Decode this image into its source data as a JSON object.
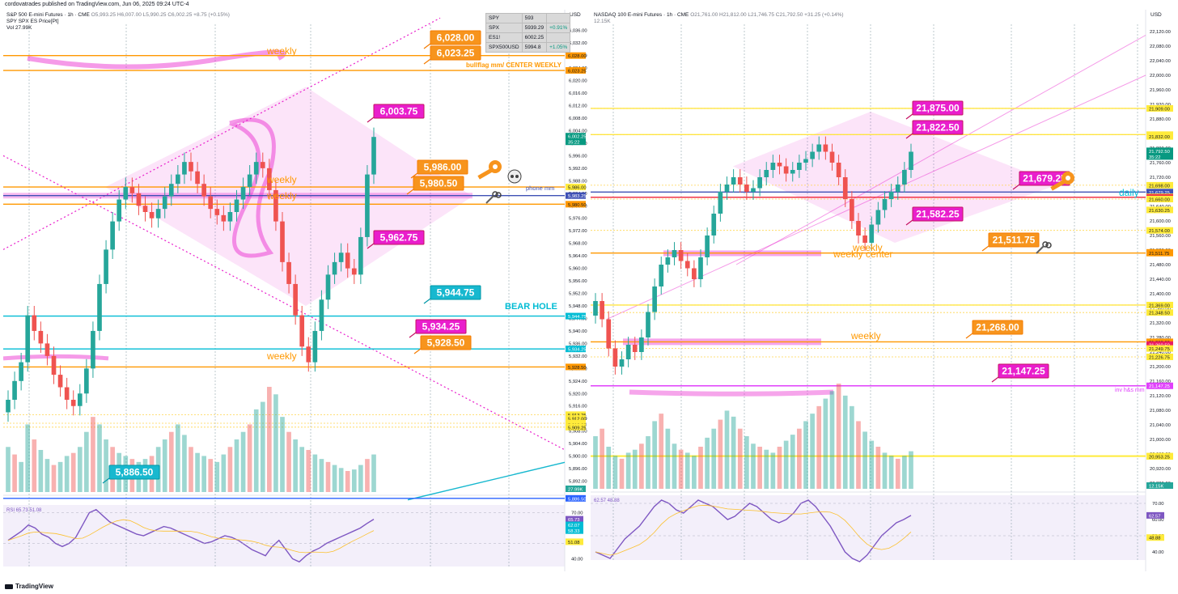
{
  "top_caption": "cordovatrades published on TradingView.com, Jun 06, 2025 09:24 UTC-4",
  "footer": "TradingView",
  "ticker_table": [
    {
      "sym": "SPY",
      "val": "593",
      "chg": ""
    },
    {
      "sym": "SPX",
      "val": "5939.29",
      "chg": "+0.91%"
    },
    {
      "sym": "ES1!",
      "val": "6002.25",
      "chg": ""
    },
    {
      "sym": "SPX500USD",
      "val": "5994.8",
      "chg": "+1.05%"
    }
  ],
  "charts": [
    {
      "id": "es",
      "title": "S&P 500 E-mini Futures · 1h · CME",
      "ohlc": "O5,993.25 H6,007.00 L5,990.25 C6,002.25 +8.75 (+0.15%)",
      "sub1": "SPY SPX ES Price[Pt]",
      "sub2": "Vol 27.99K",
      "rsi_label": "RSI 65.73 51.08",
      "currency": "USD",
      "price_ticks": [
        "6,036.00",
        "6,032.00",
        "6,028.00",
        "6,024.00",
        "6,020.00",
        "6,016.00",
        "6,012.00",
        "6,008.00",
        "6,004.00",
        "6,000.00",
        "5,996.00",
        "5,992.00",
        "5,988.00",
        "5,984.00",
        "5,980.00",
        "5,976.00",
        "5,972.00",
        "5,968.00",
        "5,964.00",
        "5,960.00",
        "5,956.00",
        "5,952.00",
        "5,948.00",
        "5,944.00",
        "5,940.00",
        "5,936.00",
        "5,932.00",
        "5,928.00",
        "5,924.00",
        "5,920.00",
        "5,916.00",
        "5,912.00",
        "5,908.00",
        "5,904.00",
        "5,900.00",
        "5,896.00",
        "5,892.00"
      ],
      "rsi_ticks": [
        "70.00",
        "60.00",
        "50.00",
        "40.00"
      ],
      "time_ticks": [
        "2:00 PM",
        "3",
        "06:00 AM",
        "12:00 PM",
        "4",
        "06:00 AM",
        "12:00 PM",
        "5",
        "06:00 AM",
        "12:00 PM",
        "6",
        "06:00 AM",
        "8",
        "9",
        "06:00 AM",
        "12:00 PM",
        "10",
        "06:00 AM"
      ],
      "axis_tags": [
        {
          "text": "6,028.00",
          "color": "#ff9800"
        },
        {
          "text": "6,023.25",
          "color": "#ff9800"
        },
        {
          "text": "6,002.25",
          "color": "#089981"
        },
        {
          "text": "35:22",
          "color": "#089981"
        },
        {
          "text": "5,986.00",
          "color": "#ffeb3b"
        },
        {
          "text": "5,983.25",
          "color": "#3f51b5"
        },
        {
          "text": "5,980.50",
          "color": "#ff9800"
        },
        {
          "text": "5,944.75",
          "color": "#00bcd4"
        },
        {
          "text": "5,934.25",
          "color": "#00bcd4"
        },
        {
          "text": "5,928.50",
          "color": "#ff9800"
        },
        {
          "text": "5,913.25",
          "color": "#ffeb3b"
        },
        {
          "text": "5,912.00",
          "color": "#ffeb3b"
        },
        {
          "text": "5,910.50",
          "color": "#ffeb3b"
        },
        {
          "text": "5,910.00",
          "color": "#ffeb3b"
        },
        {
          "text": "5,909.25",
          "color": "#ffeb3b"
        },
        {
          "text": "27.99K",
          "color": "#26a69a"
        },
        {
          "text": "5,886.50",
          "color": "#2962ff"
        }
      ],
      "rsi_tags": [
        {
          "text": "65.73",
          "color": "#7e57c2"
        },
        {
          "text": "62.07",
          "color": "#00bcd4"
        },
        {
          "text": "58.33",
          "color": "#00bcd4"
        },
        {
          "text": "51.08",
          "color": "#ffeb3b"
        }
      ],
      "labels": [
        {
          "text": "6,028.00",
          "style": "orange"
        },
        {
          "text": "6,023.25",
          "style": "orange"
        },
        {
          "text": "6,003.75",
          "style": "magenta"
        },
        {
          "text": "5,986.00",
          "style": "orange"
        },
        {
          "text": "5,980.50",
          "style": "orange"
        },
        {
          "text": "5,962.75",
          "style": "magenta"
        },
        {
          "text": "5,944.75",
          "style": "cyan"
        },
        {
          "text": "5,934.25",
          "style": "magenta"
        },
        {
          "text": "5,928.50",
          "style": "orange"
        },
        {
          "text": "5,886.50",
          "style": "cyan"
        }
      ],
      "texts": [
        {
          "text": "weekly",
          "color": "#ff9800"
        },
        {
          "text": "bullflag mm/ CENTER WEEKLY",
          "color": "#ff9800"
        },
        {
          "text": "weekly",
          "color": "#ff9800"
        },
        {
          "text": "weekly",
          "color": "#ff9800"
        },
        {
          "text": "phone mm",
          "color": "#3f51b5"
        },
        {
          "text": "BEAR HOLE",
          "color": "#00bcd4"
        },
        {
          "text": "weekly",
          "color": "#ff9800"
        }
      ]
    },
    {
      "id": "nq",
      "title": "NASDAQ 100 E-mini Futures · 1h · CME",
      "ohlc": "O21,761.00 H21,812.00 L21,746.75 C21,792.50 +31.25 (+0.14%)",
      "sub1": "12.15K",
      "sub2": "",
      "rsi_label": "62.57 48.88",
      "currency": "USD",
      "price_ticks": [
        "22,120.00",
        "22,080.00",
        "22,040.00",
        "22,000.00",
        "21,960.00",
        "21,920.00",
        "21,880.00",
        "21,840.00",
        "21,800.00",
        "21,760.00",
        "21,720.00",
        "21,680.00",
        "21,640.00",
        "21,600.00",
        "21,560.00",
        "21,520.00",
        "21,480.00",
        "21,440.00",
        "21,400.00",
        "21,360.00",
        "21,320.00",
        "21,280.00",
        "21,240.00",
        "21,200.00",
        "21,160.00",
        "21,120.00",
        "21,080.00",
        "21,040.00",
        "21,000.00",
        "20,960.00",
        "20,920.00",
        "20,880.00"
      ],
      "rsi_ticks": [
        "70.00",
        "60.00",
        "50.00",
        "40.00"
      ],
      "time_ticks": [
        "09:00 AM",
        "Jun",
        "03:00 AM",
        "12:00 PM",
        "3",
        "12:00 PM",
        "4",
        "12:00 PM",
        "5",
        "12:00 PM",
        "6",
        "09:00 AM",
        "8",
        "03:00 AM",
        "12:00 PM",
        "10",
        "12:00 PM",
        "11",
        "12:00 PM",
        "12"
      ],
      "axis_tags": [
        {
          "text": "21,909.00",
          "color": "#ffeb3b"
        },
        {
          "text": "21,837.00",
          "color": "#ffeb3b"
        },
        {
          "text": "21,832.00",
          "color": "#ffeb3b"
        },
        {
          "text": "21,792.50",
          "color": "#089981"
        },
        {
          "text": "35:22",
          "color": "#089981"
        },
        {
          "text": "21,698.00",
          "color": "#ffeb3b"
        },
        {
          "text": "21,679.25",
          "color": "#3f51b5"
        },
        {
          "text": "21,666.50",
          "color": "#ffeb3b"
        },
        {
          "text": "21,665.00",
          "color": "#f23645"
        },
        {
          "text": "21,660.00",
          "color": "#ffeb3b"
        },
        {
          "text": "21,630.25",
          "color": "#ffeb3b"
        },
        {
          "text": "21,574.00",
          "color": "#ffeb3b"
        },
        {
          "text": "21,513.75",
          "color": "#ff9800"
        },
        {
          "text": "21,511.75",
          "color": "#ff9800"
        },
        {
          "text": "21,369.00",
          "color": "#ffeb3b"
        },
        {
          "text": "21,348.50",
          "color": "#ffeb3b"
        },
        {
          "text": "21,268.00",
          "color": "#ff9800"
        },
        {
          "text": "21,260.50",
          "color": "#e91e63"
        },
        {
          "text": "21,249.75",
          "color": "#ffeb3b"
        },
        {
          "text": "21,226.75",
          "color": "#ffeb3b"
        },
        {
          "text": "21,147.25",
          "color": "#e040fb"
        },
        {
          "text": "20,954.25",
          "color": "#ffeb3b"
        },
        {
          "text": "20,953.25",
          "color": "#ffeb3b"
        },
        {
          "text": "12.15K",
          "color": "#26a69a"
        }
      ],
      "rsi_tags": [
        {
          "text": "62.57",
          "color": "#7e57c2"
        },
        {
          "text": "48.88",
          "color": "#ffeb3b"
        }
      ],
      "labels": [
        {
          "text": "21,875.00",
          "style": "magenta"
        },
        {
          "text": "21,822.50",
          "style": "magenta"
        },
        {
          "text": "21,679.25",
          "style": "magenta"
        },
        {
          "text": "21,582.25",
          "style": "magenta"
        },
        {
          "text": "21,511.75",
          "style": "orange"
        },
        {
          "text": "21,268.00",
          "style": "orange"
        },
        {
          "text": "21,147.25",
          "style": "magenta"
        }
      ],
      "texts": [
        {
          "text": "daily",
          "color": "#00bcd4"
        },
        {
          "text": "weekly",
          "color": "#ff9800"
        },
        {
          "text": "weekly center",
          "color": "#ff9800"
        },
        {
          "text": "weekly",
          "color": "#ff9800"
        },
        {
          "text": "inv h&s mm",
          "color": "#e040fb"
        }
      ]
    }
  ],
  "chart_data": [
    {
      "type": "candlestick",
      "title": "S&P 500 E-mini Futures · 1h · CME",
      "ylim": [
        5888,
        6038
      ],
      "hlines": [
        {
          "value": 6028.0,
          "color": "#ff9800",
          "label": "weekly"
        },
        {
          "value": 6023.25,
          "color": "#ff9800",
          "label": "bullflag mm/ CENTER WEEKLY"
        },
        {
          "value": 5986.0,
          "color": "#ff9800",
          "label": "weekly"
        },
        {
          "value": 5983.25,
          "color": "#3f51b5",
          "label": "phone mm"
        },
        {
          "value": 5980.5,
          "color": "#ff9800",
          "label": "weekly"
        },
        {
          "value": 5944.75,
          "color": "#00bcd4",
          "label": "BEAR HOLE"
        },
        {
          "value": 5934.25,
          "color": "#00bcd4",
          "label": ""
        },
        {
          "value": 5928.5,
          "color": "#ff9800",
          "label": "weekly"
        },
        {
          "value": 5886.5,
          "color": "#2962ff",
          "label": ""
        }
      ],
      "close": [
        5918,
        5924,
        5930,
        5945,
        5940,
        5936,
        5932,
        5926,
        5922,
        5918,
        5916,
        5920,
        5928,
        5940,
        5955,
        5966,
        5975,
        5982,
        5986,
        5984,
        5980,
        5978,
        5976,
        5979,
        5983,
        5987,
        5990,
        5994,
        5991,
        5987,
        5983,
        5979,
        5977,
        5975,
        5978,
        5982,
        5986,
        5990,
        5994,
        5992,
        5985,
        5975,
        5962,
        5955,
        5945,
        5935,
        5930,
        5940,
        5950,
        5958,
        5962,
        5965,
        5960,
        5958,
        5970,
        5990,
        6002
      ],
      "volume": [
        30,
        25,
        20,
        45,
        35,
        28,
        22,
        18,
        20,
        24,
        26,
        30,
        40,
        50,
        45,
        35,
        30,
        26,
        24,
        22,
        20,
        22,
        24,
        30,
        35,
        40,
        45,
        38,
        30,
        26,
        24,
        22,
        20,
        25,
        30,
        35,
        40,
        45,
        55,
        60,
        70,
        65,
        50,
        40,
        35,
        30,
        28,
        25,
        22,
        20,
        18,
        16,
        14,
        15,
        18,
        22,
        25
      ],
      "rsi": [
        52,
        55,
        58,
        62,
        60,
        56,
        54,
        50,
        48,
        50,
        54,
        62,
        70,
        72,
        68,
        64,
        62,
        60,
        58,
        56,
        55,
        57,
        59,
        61,
        60,
        58,
        56,
        54,
        52,
        50,
        51,
        53,
        55,
        54,
        52,
        49,
        46,
        44,
        42,
        48,
        52,
        46,
        40,
        38,
        42,
        45,
        47,
        50,
        52,
        54,
        56,
        58,
        60,
        63,
        65.73
      ]
    },
    {
      "type": "candlestick",
      "title": "NASDAQ 100 E-mini Futures · 1h · CME",
      "ylim": [
        20860,
        22140
      ],
      "hlines": [
        {
          "value": 21909.0,
          "color": "#ffeb3b",
          "label": ""
        },
        {
          "value": 21837.0,
          "color": "#ffeb3b",
          "label": ""
        },
        {
          "value": 21679.25,
          "color": "#3f51b5",
          "label": "daily"
        },
        {
          "value": 21665.0,
          "color": "#f23645",
          "label": ""
        },
        {
          "value": 21511.75,
          "color": "#ff9800",
          "label": "weekly center"
        },
        {
          "value": 21369.0,
          "color": "#ffeb3b",
          "label": ""
        },
        {
          "value": 21268.0,
          "color": "#ff9800",
          "label": "weekly"
        },
        {
          "value": 21147.25,
          "color": "#e040fb",
          "label": "inv h&s mm"
        },
        {
          "value": 20954.25,
          "color": "#ffeb3b",
          "label": ""
        }
      ],
      "close": [
        21380,
        21330,
        21250,
        21200,
        21220,
        21260,
        21240,
        21280,
        21350,
        21420,
        21480,
        21500,
        21520,
        21490,
        21470,
        21440,
        21500,
        21560,
        21620,
        21680,
        21700,
        21720,
        21700,
        21680,
        21690,
        21720,
        21740,
        21760,
        21750,
        21730,
        21740,
        21760,
        21770,
        21790,
        21810,
        21790,
        21760,
        21720,
        21660,
        21600,
        21560,
        21540,
        21590,
        21630,
        21660,
        21680,
        21700,
        21740,
        21790
      ],
      "volume": [
        35,
        40,
        28,
        22,
        20,
        24,
        26,
        30,
        35,
        45,
        50,
        40,
        30,
        26,
        24,
        22,
        28,
        34,
        40,
        46,
        52,
        48,
        40,
        35,
        30,
        28,
        26,
        24,
        28,
        32,
        36,
        40,
        45,
        50,
        55,
        60,
        65,
        70,
        62,
        55,
        45,
        38,
        32,
        28,
        24,
        22,
        20,
        22,
        25
      ],
      "rsi": [
        40,
        38,
        36,
        42,
        48,
        52,
        56,
        62,
        68,
        72,
        70,
        66,
        64,
        68,
        72,
        70,
        68,
        64,
        60,
        62,
        66,
        70,
        68,
        64,
        60,
        58,
        60,
        64,
        70,
        72,
        68,
        62,
        56,
        48,
        40,
        36,
        34,
        38,
        44,
        50,
        54,
        58,
        60,
        62.57
      ]
    }
  ]
}
